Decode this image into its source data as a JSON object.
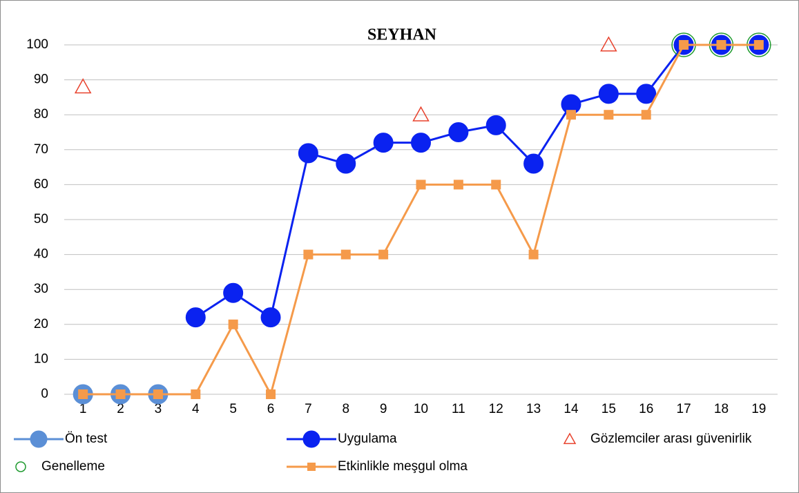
{
  "chart_data": {
    "type": "line",
    "title": "SEYHAN",
    "categories": [
      "1",
      "2",
      "3",
      "4",
      "5",
      "6",
      "7",
      "8",
      "9",
      "10",
      "11",
      "12",
      "13",
      "14",
      "15",
      "16",
      "17",
      "18",
      "19"
    ],
    "ylim": [
      0,
      100
    ],
    "yticks": [
      0,
      10,
      20,
      30,
      40,
      50,
      60,
      70,
      80,
      90,
      100
    ],
    "grid": true,
    "series": [
      {
        "name": "Ön test",
        "color": "#5b8fd6",
        "marker": "circle",
        "line": true,
        "values": [
          0,
          0,
          0,
          null,
          null,
          null,
          null,
          null,
          null,
          null,
          null,
          null,
          null,
          null,
          null,
          null,
          null,
          null,
          null
        ]
      },
      {
        "name": "Uygulama",
        "color": "#0a22f0",
        "marker": "circle",
        "line": true,
        "values": [
          null,
          null,
          null,
          22,
          29,
          22,
          69,
          66,
          72,
          72,
          75,
          77,
          66,
          83,
          86,
          86,
          100,
          100,
          100
        ]
      },
      {
        "name": "Gözlemciler arası güvenirlik",
        "color": "#e8412c",
        "marker": "triangle",
        "line": false,
        "values": [
          88,
          null,
          null,
          null,
          null,
          null,
          null,
          null,
          null,
          80,
          null,
          null,
          null,
          null,
          100,
          null,
          null,
          null,
          null
        ]
      },
      {
        "name": "Genelleme",
        "color": "#1e9a2e",
        "marker": "ring",
        "line": false,
        "values": [
          null,
          null,
          null,
          null,
          null,
          null,
          null,
          null,
          null,
          null,
          null,
          null,
          null,
          null,
          null,
          null,
          100,
          100,
          100
        ]
      },
      {
        "name": "Etkinlikle meşgul olma",
        "color": "#f59a4a",
        "marker": "square",
        "line": true,
        "values": [
          0,
          0,
          0,
          0,
          20,
          0,
          40,
          40,
          40,
          60,
          60,
          60,
          40,
          80,
          80,
          80,
          100,
          100,
          100
        ]
      }
    ]
  }
}
